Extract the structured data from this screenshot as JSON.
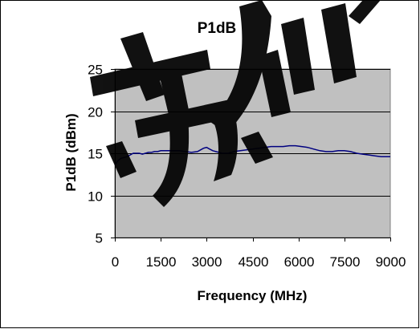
{
  "colors": {
    "plot_background": "#c0c0c0",
    "series_line": "#000080",
    "gridline": "#000000",
    "watermark": "#000000"
  },
  "watermark": {
    "text": "苏州"
  },
  "chart_data": {
    "type": "line",
    "title": "P1dB",
    "xlabel": "Frequency (MHz)",
    "ylabel": "P1dB (dBm)",
    "xlim": [
      0,
      9000
    ],
    "ylim": [
      5,
      25
    ],
    "x_ticks": [
      0,
      1500,
      3000,
      4500,
      6000,
      7500,
      9000
    ],
    "x_tick_labels": [
      "0",
      "1500",
      "3000",
      "4500",
      "6000",
      "7500",
      "9000"
    ],
    "y_ticks": [
      5,
      10,
      15,
      20,
      25
    ],
    "y_tick_labels": [
      "5",
      "10",
      "15",
      "20",
      "25"
    ],
    "grid": "horizontal",
    "legend": "none",
    "series": [
      {
        "x": [
          0,
          100,
          200,
          300,
          400,
          500,
          600,
          700,
          800,
          900,
          1000,
          1100,
          1200,
          1300,
          1400,
          1500,
          1700,
          1900,
          2100,
          2300,
          2500,
          2700,
          2800,
          2900,
          3000,
          3100,
          3200,
          3300,
          3400,
          3500,
          3700,
          3900,
          4100,
          4300,
          4500,
          4700,
          4900,
          5100,
          5300,
          5500,
          5700,
          5900,
          6100,
          6300,
          6500,
          6700,
          6900,
          7100,
          7300,
          7500,
          7700,
          7900,
          8100,
          8300,
          8500,
          8700,
          8900,
          9000
        ],
        "values": [
          13.6,
          14.1,
          14.4,
          14.5,
          14.6,
          14.8,
          15.0,
          15.0,
          15.0,
          14.9,
          15.0,
          15.1,
          15.1,
          15.2,
          15.2,
          15.3,
          15.3,
          15.3,
          15.3,
          15.2,
          15.1,
          15.2,
          15.4,
          15.6,
          15.7,
          15.5,
          15.3,
          15.2,
          15.1,
          15.0,
          15.0,
          15.2,
          15.3,
          15.4,
          15.5,
          15.6,
          15.7,
          15.8,
          15.8,
          15.8,
          15.9,
          15.9,
          15.8,
          15.7,
          15.5,
          15.3,
          15.2,
          15.2,
          15.3,
          15.3,
          15.2,
          15.0,
          14.9,
          14.8,
          14.7,
          14.6,
          14.6,
          14.6
        ]
      }
    ]
  }
}
